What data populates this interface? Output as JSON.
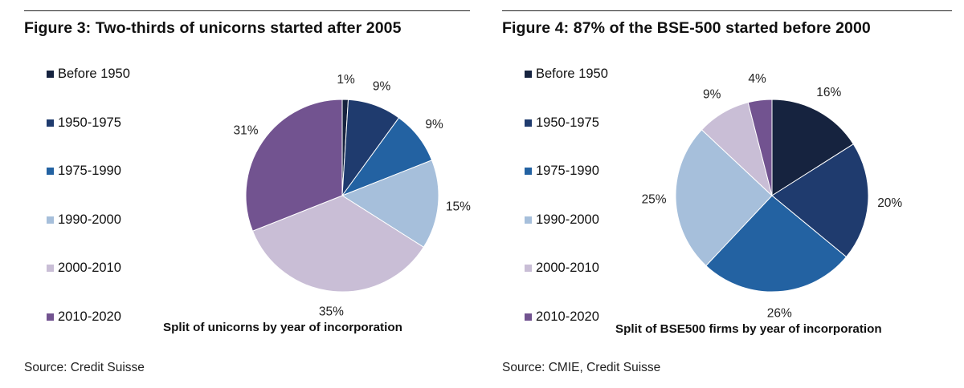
{
  "chart_data": [
    {
      "type": "pie",
      "title": "Figure 3: Two-thirds of unicorns started after 2005",
      "subtitle": "Split of unicorns by year of incorporation",
      "source": "Source: Credit Suisse",
      "legend_position": "left",
      "categories": [
        "Before 1950",
        "1950-1975",
        "1975-1990",
        "1990-2000",
        "2000-2010",
        "2010-2020"
      ],
      "values": [
        1,
        9,
        9,
        15,
        35,
        31
      ],
      "labels": [
        "1%",
        "9%",
        "9%",
        "15%",
        "35%",
        "31%"
      ],
      "colors": [
        "#16233f",
        "#1f3b6e",
        "#2362a2",
        "#a6bfdb",
        "#c9bed6",
        "#725390"
      ]
    },
    {
      "type": "pie",
      "title": "Figure 4: 87% of the BSE-500 started before 2000",
      "subtitle": "Split of BSE500 firms by year of incorporation",
      "source": "Source: CMIE, Credit Suisse",
      "legend_position": "left",
      "categories": [
        "Before 1950",
        "1950-1975",
        "1975-1990",
        "1990-2000",
        "2000-2010",
        "2010-2020"
      ],
      "values": [
        16,
        20,
        26,
        25,
        9,
        4
      ],
      "labels": [
        "16%",
        "20%",
        "26%",
        "25%",
        "9%",
        "4%"
      ],
      "colors": [
        "#16233f",
        "#1f3b6e",
        "#2362a2",
        "#a6bfdb",
        "#c9bed6",
        "#725390"
      ]
    }
  ]
}
